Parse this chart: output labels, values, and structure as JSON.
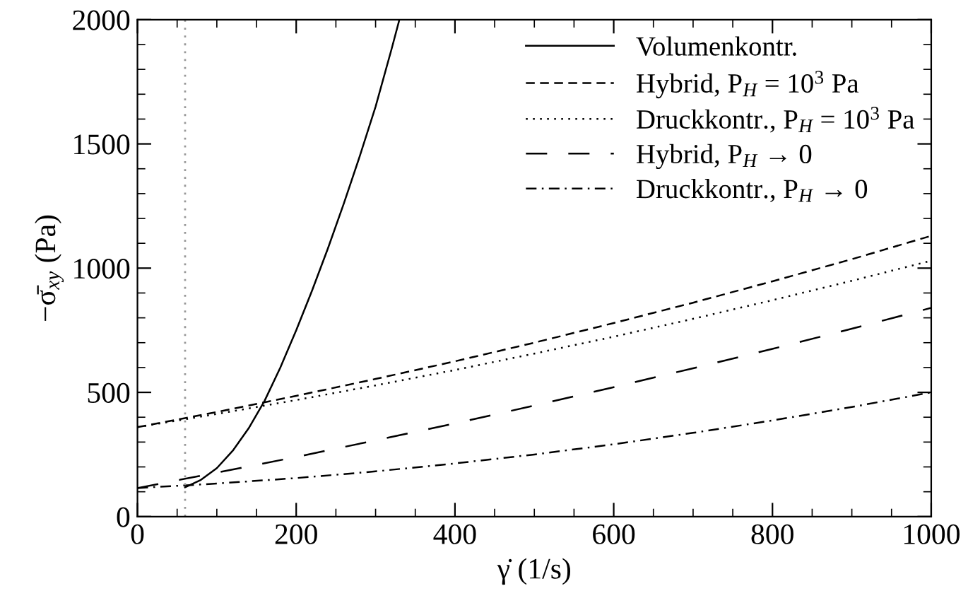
{
  "chart_data": {
    "type": "line",
    "xlabel": "γ̇ (1/s)",
    "ylabel": "−σ̄$_{xy}$ (Pa)",
    "xlim": [
      0,
      1000
    ],
    "ylim": [
      0,
      2000
    ],
    "xticks": [
      0,
      {
        "value": 50,
        "label": null
      },
      {
        "value": 100,
        "label": null
      },
      {
        "value": 150,
        "label": null
      },
      200,
      {
        "value": 250,
        "label": null
      },
      {
        "value": 300,
        "label": null
      },
      {
        "value": 350,
        "label": null
      },
      400,
      {
        "value": 450,
        "label": null
      },
      {
        "value": 500,
        "label": null
      },
      {
        "value": 550,
        "label": null
      },
      600,
      {
        "value": 650,
        "label": null
      },
      {
        "value": 700,
        "label": null
      },
      {
        "value": 750,
        "label": null
      },
      800,
      {
        "value": 850,
        "label": null
      },
      {
        "value": 900,
        "label": null
      },
      {
        "value": 950,
        "label": null
      },
      1000
    ],
    "yticks": [
      0,
      {
        "value": 100,
        "label": null
      },
      {
        "value": 200,
        "label": null
      },
      {
        "value": 300,
        "label": null
      },
      {
        "value": 400,
        "label": null
      },
      500,
      {
        "value": 600,
        "label": null
      },
      {
        "value": 700,
        "label": null
      },
      {
        "value": 800,
        "label": null
      },
      {
        "value": 900,
        "label": null
      },
      1000,
      {
        "value": 1100,
        "label": null
      },
      {
        "value": 1200,
        "label": null
      },
      {
        "value": 1300,
        "label": null
      },
      {
        "value": 1400,
        "label": null
      },
      1500,
      {
        "value": 1600,
        "label": null
      },
      {
        "value": 1700,
        "label": null
      },
      {
        "value": 1800,
        "label": null
      },
      {
        "value": 1900,
        "label": null
      },
      2000
    ],
    "grid": false,
    "legend": "top right",
    "ref_lines": [
      {
        "axis": "x",
        "value": 60,
        "color": "#999999",
        "line_style": "dotted"
      }
    ],
    "series": [
      {
        "name": "Volumenkontr.",
        "color": "#000000",
        "line_style": "solid",
        "x": [
          60,
          80,
          100,
          120,
          140,
          160,
          180,
          200,
          220,
          240,
          260,
          280,
          300,
          320,
          330
        ],
        "values": [
          118,
          148,
          195,
          265,
          355,
          465,
          600,
          750,
          910,
          1080,
          1260,
          1450,
          1650,
          1880,
          2000
        ]
      },
      {
        "name": "Hybrid, P$_{H}$ = 10$^{3}$ Pa",
        "color": "#000000",
        "line_style": "dashed",
        "x": [
          0,
          100,
          200,
          300,
          400,
          500,
          600,
          700,
          800,
          900,
          1000
        ],
        "values": [
          360,
          421,
          486,
          554,
          625,
          700,
          779,
          861,
          947,
          1036,
          1130
        ]
      },
      {
        "name": "Druckkontr., P$_{H}$ = 10$^{3}$ Pa",
        "color": "#000000",
        "line_style": "dotted",
        "x": [
          0,
          100,
          200,
          300,
          400,
          500,
          600,
          700,
          800,
          900,
          1000
        ],
        "values": [
          360,
          413,
          469,
          528,
          590,
          656,
          724,
          796,
          871,
          949,
          1030
        ]
      },
      {
        "name": "Hybrid, P$_{H}$ → 0",
        "color": "#000000",
        "line_style": "longdash",
        "x": [
          0,
          100,
          200,
          300,
          400,
          500,
          600,
          700,
          800,
          900,
          1000
        ],
        "values": [
          115,
          177,
          240,
          307,
          375,
          447,
          521,
          597,
          675,
          756,
          840
        ]
      },
      {
        "name": "Druckkontr., P$_{H}$ → 0",
        "color": "#000000",
        "line_style": "dashdot",
        "x": [
          0,
          100,
          200,
          300,
          400,
          500,
          600,
          700,
          800,
          900,
          1000
        ],
        "values": [
          115,
          133,
          155,
          182,
          214,
          250,
          291,
          337,
          387,
          441,
          500
        ]
      }
    ]
  }
}
